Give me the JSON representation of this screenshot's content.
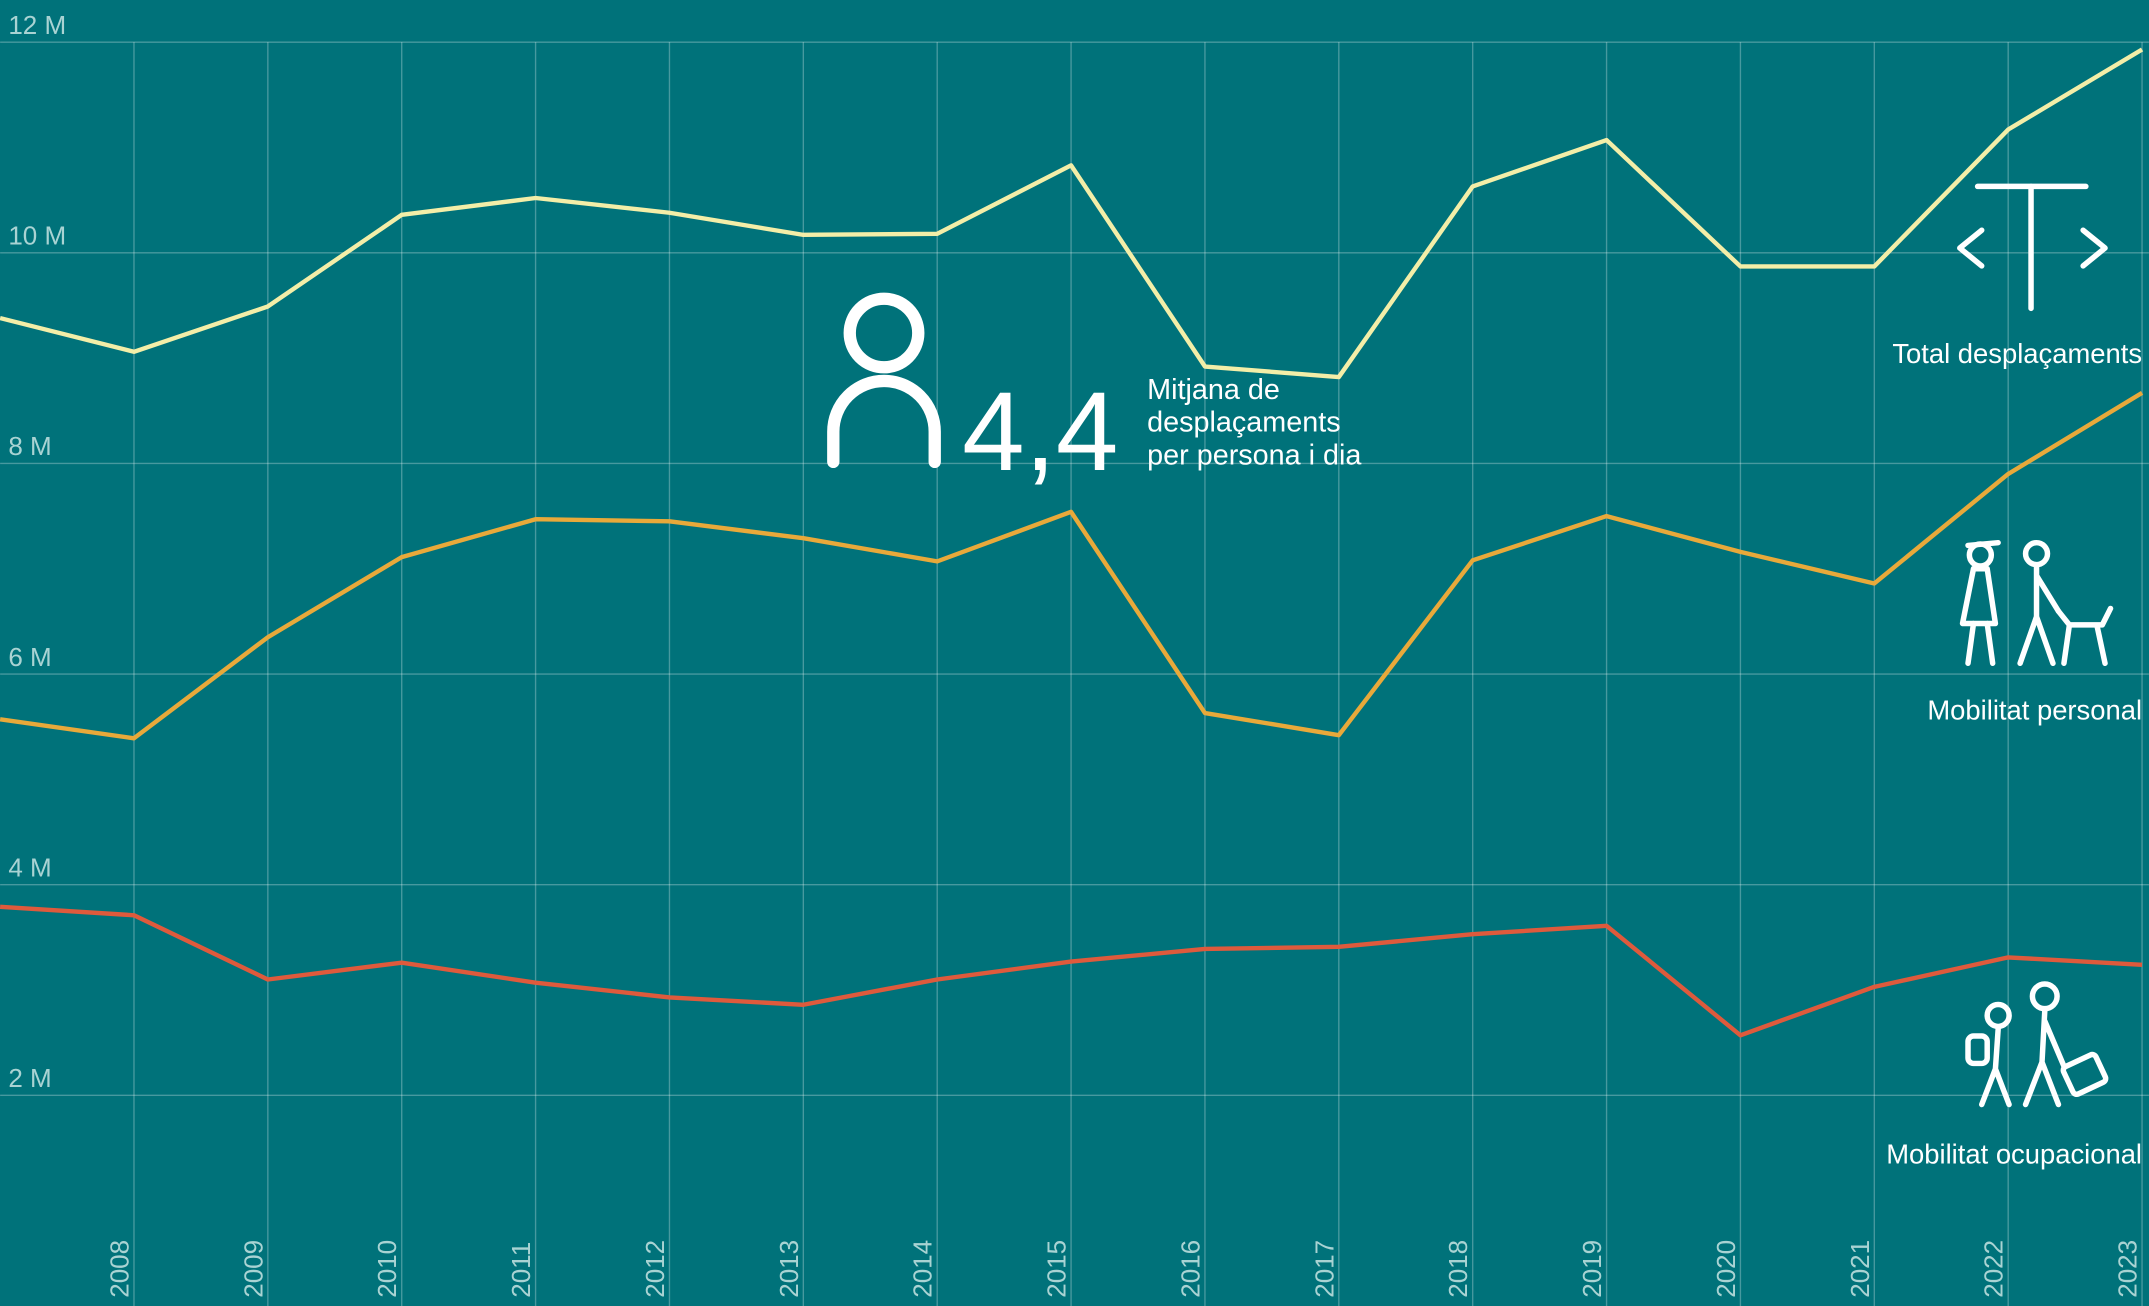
{
  "chart_data": {
    "type": "line",
    "x": [
      2007,
      2008,
      2009,
      2010,
      2011,
      2012,
      2013,
      2014,
      2015,
      2016,
      2017,
      2018,
      2019,
      2020,
      2021,
      2022,
      2023
    ],
    "xlim": [
      2007,
      2023
    ],
    "xticks": [
      2008,
      2009,
      2010,
      2011,
      2012,
      2013,
      2014,
      2015,
      2016,
      2017,
      2018,
      2019,
      2020,
      2021,
      2022,
      2023
    ],
    "ylim": [
      0,
      12.4
    ],
    "yticks": [
      {
        "value": 2,
        "label": "2 M"
      },
      {
        "value": 4,
        "label": "4 M"
      },
      {
        "value": 6,
        "label": "6 M"
      },
      {
        "value": 8,
        "label": "8 M"
      },
      {
        "value": 10,
        "label": "10 M"
      },
      {
        "value": 12,
        "label": "12 M"
      }
    ],
    "grid": true,
    "series": [
      {
        "name": "Total desplaçaments",
        "color": "#f3eea8",
        "values": [
          9.38,
          9.06,
          9.49,
          10.36,
          10.52,
          10.38,
          10.17,
          10.18,
          10.83,
          8.92,
          8.82,
          10.63,
          11.07,
          9.87,
          9.87,
          11.17,
          11.93
        ]
      },
      {
        "name": "Mobilitat personal",
        "color": "#e8a93a",
        "values": [
          5.57,
          5.39,
          6.35,
          7.11,
          7.47,
          7.45,
          7.29,
          7.07,
          7.54,
          5.63,
          5.42,
          7.08,
          7.5,
          7.16,
          6.86,
          7.9,
          8.67
        ]
      },
      {
        "name": "Mobilitat ocupacional",
        "color": "#de5a3c",
        "values": [
          3.79,
          3.71,
          3.1,
          3.26,
          3.07,
          2.93,
          2.86,
          3.1,
          3.27,
          3.39,
          3.41,
          3.53,
          3.61,
          2.57,
          3.03,
          3.31,
          3.24
        ]
      }
    ],
    "annotations": [
      "4,4",
      "Mitjana de",
      "desplaçaments",
      "per persona i dia"
    ]
  }
}
